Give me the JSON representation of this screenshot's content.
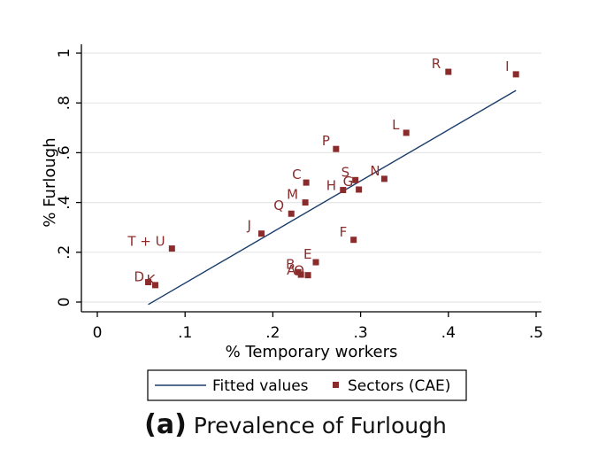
{
  "chart_data": {
    "type": "scatter",
    "title": "",
    "xlabel": "% Temporary workers",
    "ylabel": "% Furlough",
    "xlim": [
      0,
      0.5
    ],
    "ylim": [
      0,
      1
    ],
    "x_ticks": [
      0,
      0.1,
      0.2,
      0.3,
      0.4,
      0.5
    ],
    "x_tick_labels": [
      "0",
      ".1",
      ".2",
      ".3",
      ".4",
      ".5"
    ],
    "y_ticks": [
      0,
      0.2,
      0.4,
      0.6,
      0.8,
      1.0
    ],
    "y_tick_labels": [
      "0",
      ".2",
      ".4",
      ".6",
      ".8",
      "1"
    ],
    "grid": true,
    "series": [
      {
        "name": "Sectors (CAE)",
        "kind": "scatter",
        "color": "#8b2c2c",
        "points": [
          {
            "label": "R",
            "x": 0.4,
            "y": 0.925
          },
          {
            "label": "I",
            "x": 0.477,
            "y": 0.915
          },
          {
            "label": "L",
            "x": 0.352,
            "y": 0.68
          },
          {
            "label": "P",
            "x": 0.272,
            "y": 0.615
          },
          {
            "label": "C",
            "x": 0.238,
            "y": 0.48
          },
          {
            "label": "S",
            "x": 0.294,
            "y": 0.49
          },
          {
            "label": "N",
            "x": 0.327,
            "y": 0.495
          },
          {
            "label": "H",
            "x": 0.28,
            "y": 0.45
          },
          {
            "label": "G",
            "x": 0.298,
            "y": 0.452
          },
          {
            "label": "M",
            "x": 0.237,
            "y": 0.4
          },
          {
            "label": "Q",
            "x": 0.221,
            "y": 0.355
          },
          {
            "label": "J",
            "x": 0.187,
            "y": 0.275
          },
          {
            "label": "F",
            "x": 0.292,
            "y": 0.25
          },
          {
            "label": "T + U",
            "x": 0.085,
            "y": 0.215
          },
          {
            "label": "E",
            "x": 0.249,
            "y": 0.16
          },
          {
            "label": "B",
            "x": 0.229,
            "y": 0.12
          },
          {
            "label": "A",
            "x": 0.232,
            "y": 0.11
          },
          {
            "label": "O",
            "x": 0.24,
            "y": 0.108
          },
          {
            "label": "D",
            "x": 0.058,
            "y": 0.08
          },
          {
            "label": "K",
            "x": 0.066,
            "y": 0.068
          }
        ]
      },
      {
        "name": "Fitted values",
        "kind": "line",
        "color": "#1a3d6b",
        "x": [
          0.058,
          0.477
        ],
        "y": [
          -0.01,
          0.85
        ]
      }
    ],
    "legend": {
      "placement": "bottom",
      "entries": [
        "Fitted values",
        "Sectors (CAE)"
      ]
    }
  },
  "caption": {
    "letter": "(a)",
    "text": "Prevalence of Furlough"
  }
}
